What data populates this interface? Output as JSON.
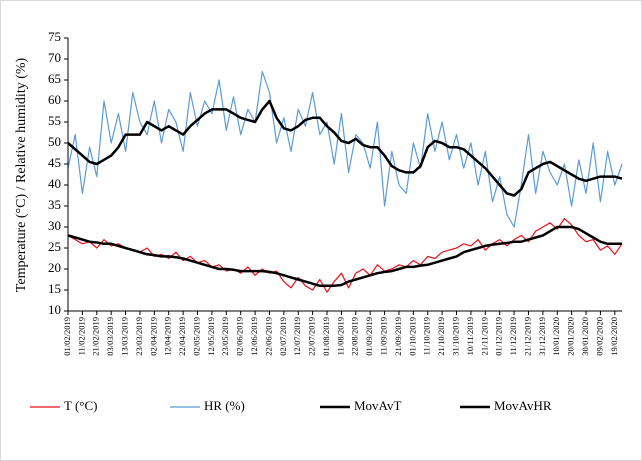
{
  "chart_data": {
    "type": "line",
    "y_label": "Temperature (°C) / Relative humidity (%)",
    "ylim": [
      10,
      75
    ],
    "yticks": [
      10,
      15,
      20,
      25,
      30,
      35,
      40,
      45,
      50,
      55,
      60,
      65,
      70,
      75
    ],
    "categories": [
      "01/02/2019",
      null,
      "11/02/2019",
      null,
      "21/02/2019",
      null,
      "03/03/2019",
      null,
      "13/03/2019",
      null,
      "23/03/2019",
      null,
      "02/04/2019",
      null,
      "12/04/2019",
      null,
      "22/04/2019",
      null,
      "02/05/2019",
      null,
      "12/05/2019",
      null,
      "23/05/2019",
      null,
      "02/06/2019",
      null,
      "12/06/2019",
      null,
      "22/06/2019",
      null,
      "02/07/2019",
      null,
      "12/07/2019",
      null,
      "22/07/2019",
      null,
      "01/08/2019",
      null,
      "11/08/2019",
      null,
      "22/08/2019",
      null,
      "01/09/2019",
      null,
      "11/09/2019",
      null,
      "21/09/2019",
      null,
      "01/10/2019",
      null,
      "11/10/2019",
      null,
      "21/10/2019",
      null,
      "31/10/2019",
      null,
      "10/11/2019",
      null,
      "21/11/2019",
      null,
      "01/12/2019",
      null,
      "11/12/2019",
      null,
      "21/12/2019",
      null,
      "31/12/2019",
      null,
      "10/01/2020",
      null,
      "20/01/2020",
      null,
      "30/01/2020",
      null,
      "09/02/2020",
      null,
      "19/02/2020",
      null
    ],
    "series": [
      {
        "name": "T (°C)",
        "color": "#e8111a",
        "width": 1.2,
        "values": [
          28,
          27,
          26,
          26.5,
          25,
          27,
          25.5,
          26,
          25,
          24.5,
          24,
          25,
          23,
          23.5,
          22.5,
          24,
          22,
          23,
          21.5,
          22,
          20.5,
          21,
          19.5,
          20,
          19,
          20.5,
          18.5,
          20,
          19,
          19.5,
          17,
          15.5,
          18,
          16,
          15,
          17.5,
          14.5,
          17,
          19,
          15.5,
          19,
          20,
          18.5,
          21,
          19.5,
          20,
          21,
          20.5,
          22,
          21,
          23,
          22.5,
          24,
          24.5,
          25,
          26,
          25.5,
          27,
          24.5,
          26,
          27,
          25.5,
          27,
          28,
          26.5,
          29,
          30,
          31,
          29.5,
          32,
          30.5,
          28,
          26.5,
          27,
          24.5,
          25.5,
          23.5,
          26
        ]
      },
      {
        "name": "HR (%)",
        "color": "#5b9bd5",
        "width": 1.2,
        "values": [
          44,
          52,
          38,
          49,
          42,
          60,
          50,
          57,
          48,
          62,
          55,
          52,
          60,
          50,
          58,
          55,
          48,
          62,
          54,
          60,
          57,
          65,
          53,
          61,
          52,
          58,
          55,
          67,
          62,
          50,
          56,
          48,
          58,
          54,
          62,
          52,
          55,
          45,
          57,
          43,
          52,
          50,
          44,
          55,
          35,
          48,
          40,
          38,
          50,
          44,
          57,
          48,
          55,
          46,
          52,
          44,
          50,
          40,
          48,
          36,
          42,
          33,
          30,
          40,
          52,
          38,
          48,
          43,
          40,
          45,
          35,
          46,
          38,
          50,
          36,
          48,
          40,
          45
        ]
      },
      {
        "name": "MovAvT",
        "color": "#000000",
        "width": 2.5,
        "values": [
          28,
          27.5,
          27,
          26.5,
          26.3,
          26,
          26,
          25.5,
          25,
          24.5,
          24,
          23.5,
          23.3,
          23,
          23,
          22.8,
          22.5,
          22,
          21.5,
          21,
          20.5,
          20,
          20,
          19.8,
          19.5,
          19.5,
          19.5,
          19.5,
          19.3,
          19,
          18.5,
          18,
          17.5,
          17,
          16.5,
          16,
          16,
          16,
          16.2,
          17,
          17.5,
          18,
          18.5,
          19,
          19.3,
          19.5,
          20,
          20.5,
          20.5,
          20.8,
          21,
          21.5,
          22,
          22.5,
          23,
          24,
          24.5,
          25,
          25.5,
          25.8,
          26,
          26.2,
          26.5,
          26.5,
          27,
          27.5,
          28,
          29,
          30,
          30,
          30,
          29.5,
          28.5,
          27.5,
          26.5,
          26,
          26,
          26
        ]
      },
      {
        "name": "MovAvHR",
        "color": "#000000",
        "width": 2.5,
        "values": [
          50,
          48.5,
          47,
          45.5,
          45,
          46,
          47,
          49,
          52,
          52,
          52,
          55,
          54,
          53,
          54,
          53,
          52,
          54,
          55.5,
          57,
          58,
          58,
          58,
          57,
          56,
          55.5,
          55,
          58,
          60,
          56,
          53.5,
          53,
          54,
          55.5,
          56,
          56,
          54,
          52.5,
          50.5,
          50,
          51,
          49.5,
          49,
          49,
          47,
          44.5,
          43.5,
          43,
          43,
          44.5,
          49,
          50.5,
          50,
          49,
          49,
          48.5,
          47,
          45.5,
          44,
          42,
          40,
          38,
          37.5,
          39,
          43,
          44,
          45,
          45.5,
          44.5,
          43.5,
          42.5,
          41.5,
          41,
          41.5,
          42,
          42,
          42,
          41.5
        ]
      }
    ]
  }
}
